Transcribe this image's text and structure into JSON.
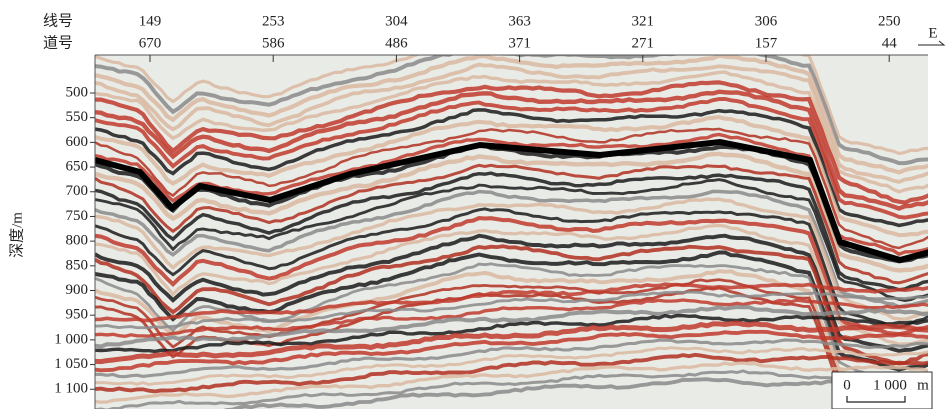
{
  "chart_data": {
    "type": "seismic-section",
    "top_row_labels": [
      "线号",
      "道号"
    ],
    "line_numbers": [
      "149",
      "253",
      "304",
      "363",
      "321",
      "306",
      "250"
    ],
    "trace_numbers": [
      "670",
      "586",
      "486",
      "371",
      "271",
      "157",
      "44"
    ],
    "direction": "E",
    "y_label": "深度/m",
    "ylim": [
      423,
      1140
    ],
    "yticks": [
      500,
      550,
      600,
      650,
      700,
      750,
      800,
      850,
      900,
      950,
      {
        "value": 1000,
        "label": "1 000"
      },
      {
        "value": 1050,
        "label": "1 050"
      },
      {
        "value": 1100,
        "label": "1 100"
      }
    ],
    "scale_bar": {
      "start": "0",
      "length": "1 000",
      "unit": "m"
    }
  }
}
